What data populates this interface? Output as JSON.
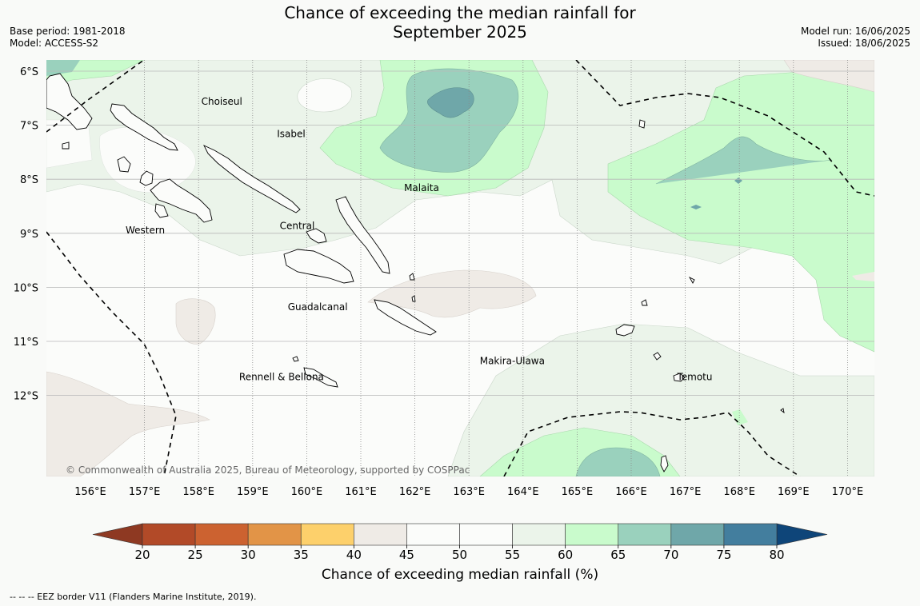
{
  "title_line1": "Chance of exceeding the median rainfall for",
  "title_line2": "September 2025",
  "base_period": "Base period: 1981-2018",
  "model": "Model: ACCESS-S2",
  "model_run": "Model run: 16/06/2025",
  "issued": "Issued: 18/06/2025",
  "copyright": "© Commonwealth of Australia 2025, Bureau of Meteorology, supported by COSPPac",
  "colorbar_label": "Chance of exceeding median rainfall (%)",
  "footnote": "--  --  -- EEZ border V11 (Flanders Marine Institute, 2019).",
  "lat_labels": [
    "6°S",
    "7°S",
    "8°S",
    "9°S",
    "10°S",
    "11°S",
    "12°S"
  ],
  "lon_labels": [
    "156°E",
    "157°E",
    "158°E",
    "159°E",
    "160°E",
    "161°E",
    "162°E",
    "163°E",
    "164°E",
    "165°E",
    "166°E",
    "167°E",
    "168°E",
    "169°E",
    "170°E"
  ],
  "province_labels": [
    {
      "text": "Choiseul",
      "lon": 158.05,
      "lat": -6.62
    },
    {
      "text": "Isabel",
      "lon": 159.45,
      "lat": -7.22
    },
    {
      "text": "Malaita",
      "lon": 161.8,
      "lat": -8.22
    },
    {
      "text": "Western",
      "lon": 156.65,
      "lat": -9.0
    },
    {
      "text": "Central",
      "lon": 159.5,
      "lat": -8.92
    },
    {
      "text": "Guadalcanal",
      "lon": 159.65,
      "lat": -10.42
    },
    {
      "text": "Makira-Ulawa",
      "lon": 163.2,
      "lat": -11.42
    },
    {
      "text": "Rennell & Bellona",
      "lon": 158.75,
      "lat": -11.72
    },
    {
      "text": "Temotu",
      "lon": 166.85,
      "lat": -11.72
    }
  ],
  "colorbar": {
    "ticks": [
      "20",
      "25",
      "30",
      "35",
      "40",
      "45",
      "50",
      "55",
      "60",
      "65",
      "70",
      "75",
      "80"
    ],
    "under_color": "#8e3922",
    "over_color": "#0e4579",
    "colors": [
      "#b24a28",
      "#cc6230",
      "#e29447",
      "#fdd06b",
      "#efebe6",
      "#fbfcfa",
      "#fbfcfa",
      "#ebf4ea",
      "#c9fbcc",
      "#9ad1bd",
      "#6fa7a9",
      "#437e9e"
    ]
  },
  "colors": {
    "c40_45": "#efebe6",
    "c55_60": "#ebf4ea",
    "c60_65": "#c9fbcc",
    "c65_70": "#9ad1bd",
    "c70_75": "#6fa7a9",
    "c75_80": "#437e9e",
    "c35_40": "#fdd06b"
  }
}
